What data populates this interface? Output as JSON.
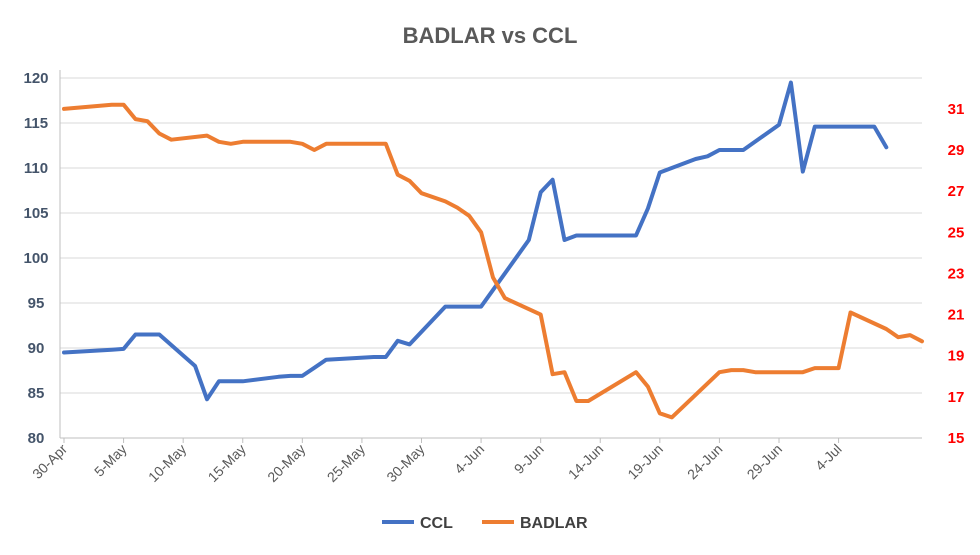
{
  "chart_data": {
    "type": "line",
    "title": "BADLAR vs CCL",
    "xlabel": "",
    "ylabel": "",
    "y2label": "",
    "grid": true,
    "legend_position": "bottom",
    "x_ticks": [
      "30-Apr",
      "5-May",
      "10-May",
      "15-May",
      "20-May",
      "25-May",
      "30-May",
      "4-Jun",
      "9-Jun",
      "14-Jun",
      "19-Jun",
      "24-Jun",
      "29-Jun",
      "4-Jul"
    ],
    "x_range": [
      "2020-04-30",
      "2020-07-08"
    ],
    "ylim": [
      80,
      120
    ],
    "y_ticks": [
      80,
      85,
      90,
      95,
      100,
      105,
      110,
      115,
      120
    ],
    "y2lim": [
      15,
      32.5
    ],
    "y2_ticks": [
      15,
      17,
      19,
      21,
      23,
      25,
      27,
      29,
      31
    ],
    "series": [
      {
        "name": "CCL",
        "axis": "left",
        "color": "#4472c4",
        "points": [
          [
            "2020-04-30",
            89.5
          ],
          [
            "2020-05-04",
            89.8
          ],
          [
            "2020-05-05",
            89.9
          ],
          [
            "2020-05-06",
            91.5
          ],
          [
            "2020-05-07",
            91.5
          ],
          [
            "2020-05-08",
            91.5
          ],
          [
            "2020-05-11",
            88.0
          ],
          [
            "2020-05-12",
            84.3
          ],
          [
            "2020-05-13",
            86.3
          ],
          [
            "2020-05-14",
            86.3
          ],
          [
            "2020-05-15",
            86.3
          ],
          [
            "2020-05-18",
            86.8
          ],
          [
            "2020-05-19",
            86.9
          ],
          [
            "2020-05-20",
            86.9
          ],
          [
            "2020-05-21",
            87.8
          ],
          [
            "2020-05-22",
            88.7
          ],
          [
            "2020-05-26",
            89.0
          ],
          [
            "2020-05-27",
            89.0
          ],
          [
            "2020-05-28",
            90.8
          ],
          [
            "2020-05-29",
            90.4
          ],
          [
            "2020-06-01",
            94.6
          ],
          [
            "2020-06-02",
            94.6
          ],
          [
            "2020-06-03",
            94.6
          ],
          [
            "2020-06-04",
            94.6
          ],
          [
            "2020-06-08",
            102.0
          ],
          [
            "2020-06-09",
            107.3
          ],
          [
            "2020-06-10",
            108.7
          ],
          [
            "2020-06-11",
            102.0
          ],
          [
            "2020-06-12",
            102.5
          ],
          [
            "2020-06-15",
            102.5
          ],
          [
            "2020-06-16",
            102.5
          ],
          [
            "2020-06-17",
            102.5
          ],
          [
            "2020-06-18",
            105.5
          ],
          [
            "2020-06-19",
            109.5
          ],
          [
            "2020-06-22",
            111.0
          ],
          [
            "2020-06-23",
            111.3
          ],
          [
            "2020-06-24",
            112.0
          ],
          [
            "2020-06-25",
            112.0
          ],
          [
            "2020-06-26",
            112.0
          ],
          [
            "2020-06-29",
            114.8
          ],
          [
            "2020-06-30",
            119.5
          ],
          [
            "2020-07-01",
            109.6
          ],
          [
            "2020-07-02",
            114.6
          ],
          [
            "2020-07-03",
            114.6
          ],
          [
            "2020-07-06",
            114.6
          ],
          [
            "2020-07-07",
            114.6
          ],
          [
            "2020-07-08",
            112.3
          ]
        ]
      },
      {
        "name": "BADLAR",
        "axis": "right",
        "color": "#ed7d31",
        "points": [
          [
            "2020-04-30",
            31.0
          ],
          [
            "2020-05-04",
            31.2
          ],
          [
            "2020-05-05",
            31.2
          ],
          [
            "2020-05-06",
            30.5
          ],
          [
            "2020-05-07",
            30.4
          ],
          [
            "2020-05-08",
            29.8
          ],
          [
            "2020-05-09",
            29.5
          ],
          [
            "2020-05-12",
            29.7
          ],
          [
            "2020-05-13",
            29.4
          ],
          [
            "2020-05-14",
            29.3
          ],
          [
            "2020-05-15",
            29.4
          ],
          [
            "2020-05-19",
            29.4
          ],
          [
            "2020-05-20",
            29.3
          ],
          [
            "2020-05-21",
            29.0
          ],
          [
            "2020-05-22",
            29.3
          ],
          [
            "2020-05-26",
            29.3
          ],
          [
            "2020-05-27",
            29.3
          ],
          [
            "2020-05-28",
            27.8
          ],
          [
            "2020-05-29",
            27.5
          ],
          [
            "2020-05-30",
            26.9
          ],
          [
            "2020-06-01",
            26.5
          ],
          [
            "2020-06-02",
            26.2
          ],
          [
            "2020-06-03",
            25.8
          ],
          [
            "2020-06-04",
            25.0
          ],
          [
            "2020-06-05",
            22.8
          ],
          [
            "2020-06-06",
            21.8
          ],
          [
            "2020-06-09",
            21.0
          ],
          [
            "2020-06-10",
            18.1
          ],
          [
            "2020-06-11",
            18.2
          ],
          [
            "2020-06-12",
            16.8
          ],
          [
            "2020-06-13",
            16.8
          ],
          [
            "2020-06-17",
            18.2
          ],
          [
            "2020-06-18",
            17.5
          ],
          [
            "2020-06-19",
            16.2
          ],
          [
            "2020-06-20",
            16.0
          ],
          [
            "2020-06-24",
            18.2
          ],
          [
            "2020-06-25",
            18.3
          ],
          [
            "2020-06-26",
            18.3
          ],
          [
            "2020-06-27",
            18.2
          ],
          [
            "2020-07-01",
            18.2
          ],
          [
            "2020-07-02",
            18.4
          ],
          [
            "2020-07-03",
            18.4
          ],
          [
            "2020-07-04",
            18.4
          ],
          [
            "2020-07-05",
            21.1
          ],
          [
            "2020-07-08",
            20.3
          ],
          [
            "2020-07-09",
            19.9
          ],
          [
            "2020-07-10",
            20.0
          ],
          [
            "2020-07-11",
            19.7
          ]
        ]
      }
    ]
  }
}
